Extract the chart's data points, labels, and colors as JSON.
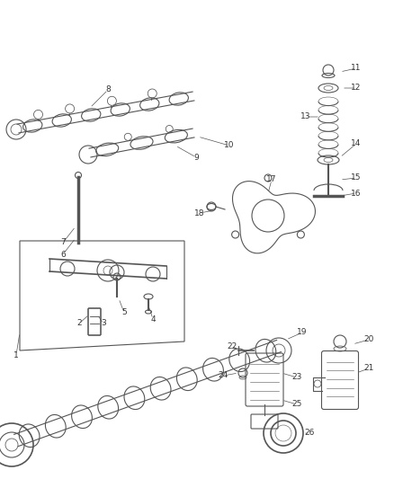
{
  "bg_color": "#ffffff",
  "line_color": "#555555",
  "label_color": "#333333",
  "figsize": [
    4.38,
    5.33
  ],
  "dpi": 100,
  "lw": 0.8,
  "label_font": 6.5
}
